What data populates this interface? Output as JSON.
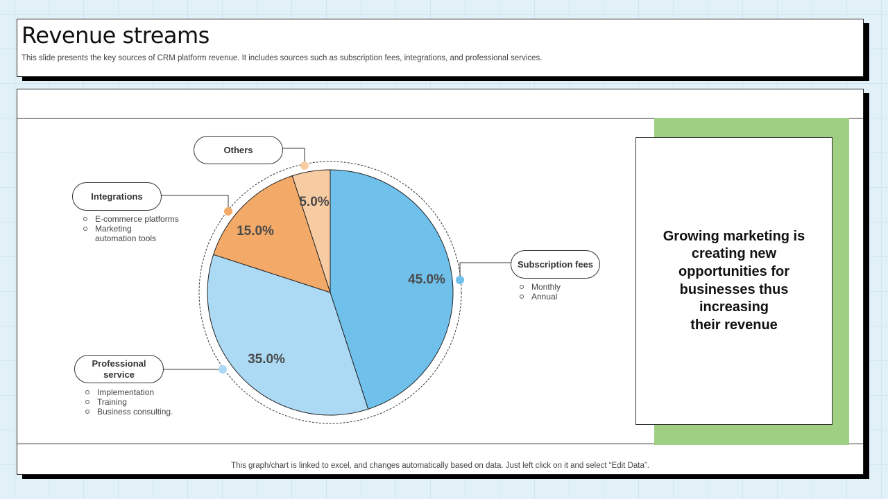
{
  "header": {
    "title": "Revenue streams",
    "subtitle": "This slide presents the key sources of CRM platform revenue. It includes sources such as subscription fees, integrations, and professional services."
  },
  "callout": {
    "text": "Growing marketing is\ncreating new\nopportunities for\nbusinesses thus\nincreasing\ntheir revenue"
  },
  "footnote": "This graph/chart is linked to excel, and changes automatically based on data. Just left click on it and select “Edit Data”.",
  "chart_data": {
    "type": "pie",
    "title": "",
    "slices": [
      {
        "label": "Subscription fees",
        "value": 45.0,
        "display": "45.0%",
        "color": "#6fc0ea",
        "items": [
          "Monthly",
          "Annual"
        ]
      },
      {
        "label": "Professional service",
        "value": 35.0,
        "display": "35.0%",
        "color": "#acdaf5",
        "items": [
          "Implementation",
          "Training",
          "Business consulting."
        ]
      },
      {
        "label": "Integrations",
        "value": 15.0,
        "display": "15.0%",
        "color": "#f3aa68",
        "items": [
          "E-commerce platforms",
          "Marketing automation tools"
        ]
      },
      {
        "label": "Others",
        "value": 5.0,
        "display": "5.0%",
        "color": "#f8cca3",
        "items": []
      }
    ],
    "start_angle_deg": 0,
    "direction": "clockwise",
    "label_color": "#4a4a4a",
    "outline_color": "#222222"
  }
}
